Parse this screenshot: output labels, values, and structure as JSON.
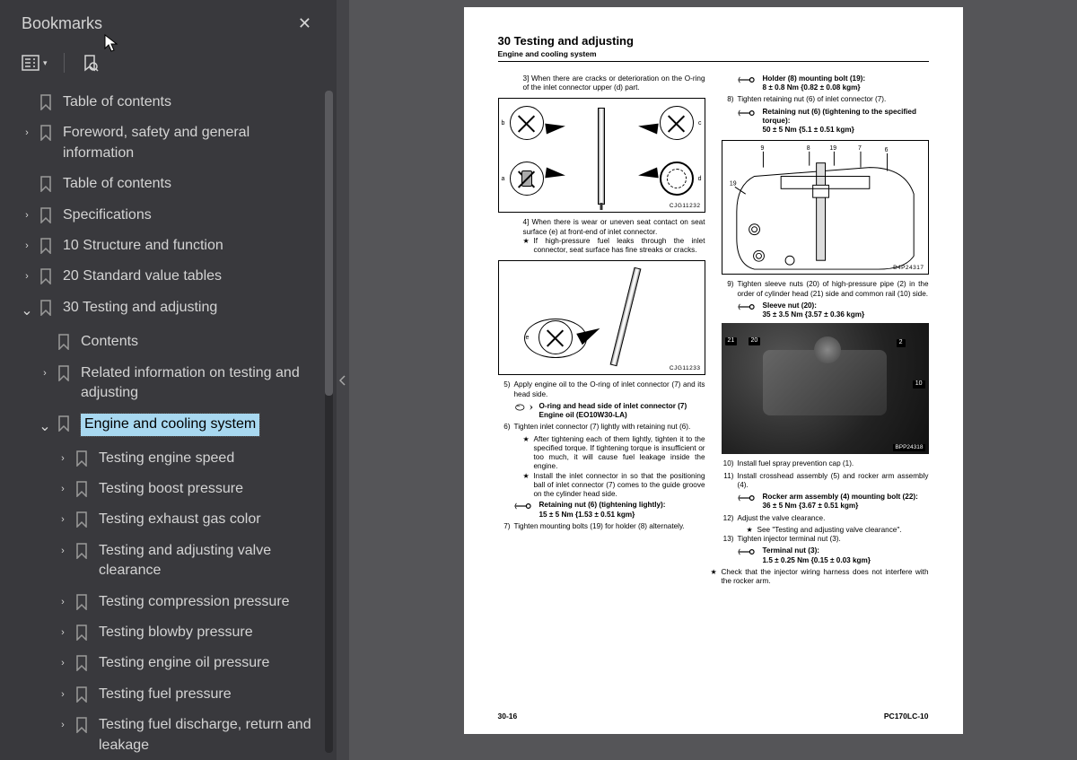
{
  "sidebar": {
    "title": "Bookmarks",
    "items": [
      {
        "label": "Table of contents",
        "indent": 0,
        "chev": "",
        "sel": false
      },
      {
        "label": "Foreword, safety and general information",
        "indent": 0,
        "chev": "right",
        "sel": false
      },
      {
        "label": "Table of contents",
        "indent": 0,
        "chev": "",
        "sel": false
      },
      {
        "label": "Specifications",
        "indent": 0,
        "chev": "right",
        "sel": false
      },
      {
        "label": "10 Structure and function",
        "indent": 0,
        "chev": "right",
        "sel": false
      },
      {
        "label": "20 Standard value tables",
        "indent": 0,
        "chev": "right",
        "sel": false
      },
      {
        "label": "30 Testing and adjusting",
        "indent": 0,
        "chev": "down",
        "sel": false
      },
      {
        "label": "Contents",
        "indent": 1,
        "chev": "",
        "sel": false
      },
      {
        "label": "Related information on testing and adjusting",
        "indent": 1,
        "chev": "right",
        "sel": false
      },
      {
        "label": "Engine and cooling system",
        "indent": 1,
        "chev": "down",
        "sel": true
      },
      {
        "label": "Testing engine speed",
        "indent": 2,
        "chev": "right",
        "sel": false
      },
      {
        "label": "Testing boost pressure",
        "indent": 2,
        "chev": "right",
        "sel": false
      },
      {
        "label": "Testing exhaust gas color",
        "indent": 2,
        "chev": "right",
        "sel": false
      },
      {
        "label": "Testing and adjusting valve clearance",
        "indent": 2,
        "chev": "right",
        "sel": false
      },
      {
        "label": "Testing compression pressure",
        "indent": 2,
        "chev": "right",
        "sel": false
      },
      {
        "label": "Testing blowby pressure",
        "indent": 2,
        "chev": "right",
        "sel": false
      },
      {
        "label": "Testing engine oil pressure",
        "indent": 2,
        "chev": "right",
        "sel": false
      },
      {
        "label": "Testing fuel pressure",
        "indent": 2,
        "chev": "right",
        "sel": false
      },
      {
        "label": "Testing fuel discharge, return and leakage",
        "indent": 2,
        "chev": "right",
        "sel": false
      }
    ]
  },
  "page": {
    "title": "30 Testing and adjusting",
    "subtitle": "Engine and cooling system",
    "footer_left": "30-16",
    "footer_right": "PC170LC-10",
    "left_col": {
      "p1": "3] When there are cracks or deterioration on the O-ring of the inlet connector upper (d) part.",
      "fig1_label": "CJG11232",
      "fig1_letters": {
        "a": "a",
        "b": "b",
        "c": "c",
        "d": "d"
      },
      "p2": "4] When there is wear or uneven seat contact on seat surface (e) at front-end of inlet connector.",
      "p2_star": "If high-pressure fuel leaks through the inlet connector, seat surface has fine streaks or cracks.",
      "fig2_label": "CJG11233",
      "fig2_letter": "e",
      "s5": "Apply engine oil to the O-ring of inlet connector (7) and its head side.",
      "s5_oil1": "O-ring and head side of inlet connector (7)",
      "s5_oil2": "Engine oil (EO10W30-LA)",
      "s6": "Tighten inlet connector (7) lightly with retaining nut (6).",
      "s6_star1": "After tightening each of them lightly, tighten it to the specified torque. If tightening torque is insufficient or too much, it will cause fuel leakage inside the engine.",
      "s6_star2": "Install the inlet connector in so that the positioning ball of inlet connector (7) comes to the guide groove on the cylinder head side.",
      "s6_tq_label": "Retaining nut (6) (tightening lightly):",
      "s6_tq_val": "15 ± 5 Nm {1.53 ± 0.51 kgm}",
      "s7": "Tighten mounting bolts (19) for holder (8) alternately."
    },
    "right_col": {
      "tq1_label": "Holder (8) mounting bolt (19):",
      "tq1_val": "8 ± 0.8 Nm {0.82 ± 0.08 kgm}",
      "s8": "Tighten retaining nut (6) of inlet connector (7).",
      "tq2_label": "Retaining nut (6) (tightening to the specified torque):",
      "tq2_val": "50 ± 5 Nm {5.1 ± 0.51 kgm}",
      "fig3_label": "B4P24317",
      "s9": "Tighten sleeve nuts (20) of high-pressure pipe (2) in the order of cylinder head (21) side and common rail (10) side.",
      "tq3_label": "Sleeve nut (20):",
      "tq3_val": "35 ± 3.5 Nm {3.57 ± 0.36 kgm}",
      "photo_label": "BPP24318",
      "photo_tags": [
        "21",
        "20",
        "2",
        "10"
      ],
      "s10": "Install fuel spray prevention cap (1).",
      "s11": "Install crosshead assembly (5) and rocker arm assembly (4).",
      "tq4_label": "Rocker arm assembly (4) mounting bolt (22):",
      "tq4_val": "36 ± 5 Nm {3.67 ± 0.51 kgm}",
      "s12": "Adjust the valve clearance.",
      "s12_star": "See \"Testing and adjusting valve clearance\".",
      "s13": "Tighten injector terminal nut (3).",
      "tq5_label": "Terminal nut (3):",
      "tq5_val": "1.5 ± 0.25 Nm {0.15 ± 0.03 kgm}",
      "final_star": "Check that the injector wiring harness does not interfere with the rocker arm."
    }
  }
}
